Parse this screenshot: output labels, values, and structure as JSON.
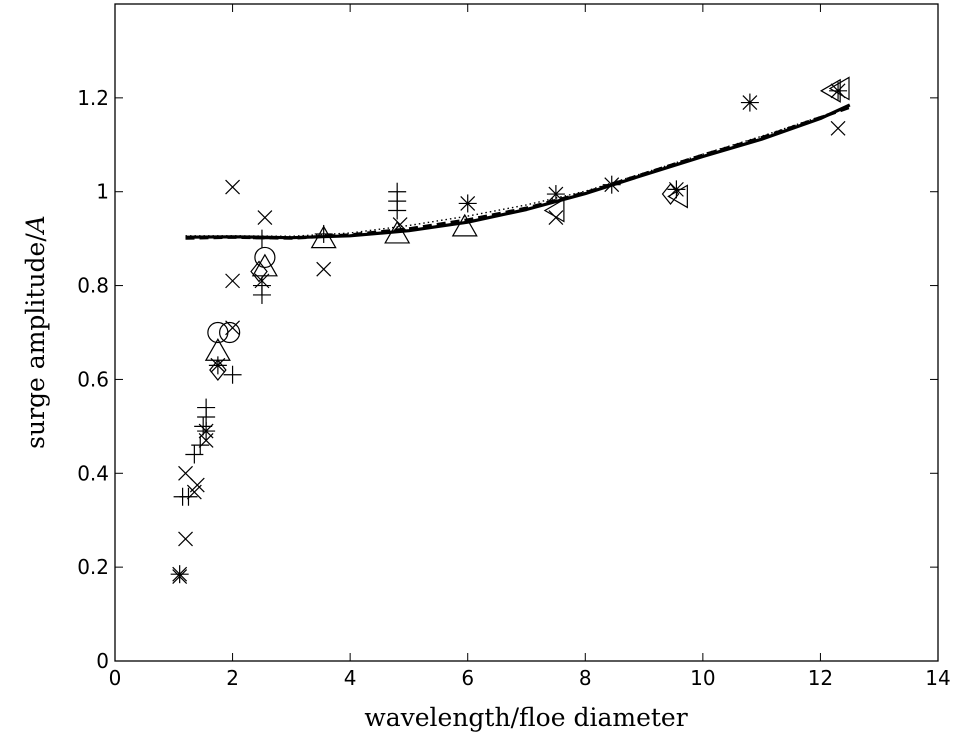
{
  "chart_data": {
    "type": "scatter",
    "title": "",
    "xlabel": "wavelength/floe diameter",
    "ylabel": {
      "prefix": "surge amplitude/",
      "var": "A"
    },
    "xlim": [
      0,
      14
    ],
    "ylim": [
      0,
      1.4
    ],
    "x_ticks": [
      0,
      2,
      4,
      6,
      8,
      10,
      12,
      14
    ],
    "y_ticks": [
      0,
      0.2,
      0.4,
      0.6,
      0.8,
      1,
      1.2
    ],
    "grid": false,
    "legend": null,
    "points": [
      {
        "marker": "x",
        "x": 1.1,
        "y": 0.18
      },
      {
        "marker": "*",
        "x": 1.1,
        "y": 0.185
      },
      {
        "marker": "x",
        "x": 1.2,
        "y": 0.26
      },
      {
        "marker": "+",
        "x": 1.15,
        "y": 0.35
      },
      {
        "marker": "+",
        "x": 1.25,
        "y": 0.35
      },
      {
        "marker": "x",
        "x": 1.2,
        "y": 0.4
      },
      {
        "marker": "x",
        "x": 1.35,
        "y": 0.36
      },
      {
        "marker": "x",
        "x": 1.4,
        "y": 0.375
      },
      {
        "marker": "+",
        "x": 1.35,
        "y": 0.44
      },
      {
        "marker": "+",
        "x": 1.45,
        "y": 0.46
      },
      {
        "marker": "x",
        "x": 1.55,
        "y": 0.47
      },
      {
        "marker": "*",
        "x": 1.55,
        "y": 0.49
      },
      {
        "marker": "+",
        "x": 1.5,
        "y": 0.5
      },
      {
        "marker": "+",
        "x": 1.55,
        "y": 0.52
      },
      {
        "marker": "+",
        "x": 1.55,
        "y": 0.54
      },
      {
        "marker": "diamond",
        "x": 1.75,
        "y": 0.62
      },
      {
        "marker": "*",
        "x": 1.75,
        "y": 0.63
      },
      {
        "marker": "triangle",
        "x": 1.75,
        "y": 0.66
      },
      {
        "marker": "circle",
        "x": 1.75,
        "y": 0.7
      },
      {
        "marker": "+",
        "x": 2.0,
        "y": 0.61
      },
      {
        "marker": "circle",
        "x": 1.95,
        "y": 0.7
      },
      {
        "marker": "x",
        "x": 2.0,
        "y": 0.71
      },
      {
        "marker": "x",
        "x": 2.0,
        "y": 0.81
      },
      {
        "marker": "x",
        "x": 2.0,
        "y": 1.01
      },
      {
        "marker": "+",
        "x": 2.5,
        "y": 0.78
      },
      {
        "marker": "+",
        "x": 2.5,
        "y": 0.8
      },
      {
        "marker": "x",
        "x": 2.5,
        "y": 0.81
      },
      {
        "marker": "diamond",
        "x": 2.45,
        "y": 0.83
      },
      {
        "marker": "triangle",
        "x": 2.55,
        "y": 0.84
      },
      {
        "marker": "circle",
        "x": 2.55,
        "y": 0.86
      },
      {
        "marker": "+",
        "x": 2.5,
        "y": 0.9
      },
      {
        "marker": "x",
        "x": 2.55,
        "y": 0.945
      },
      {
        "marker": "triangle",
        "x": 3.55,
        "y": 0.9
      },
      {
        "marker": "+",
        "x": 3.55,
        "y": 0.91
      },
      {
        "marker": "x",
        "x": 3.55,
        "y": 0.835
      },
      {
        "marker": "triangle",
        "x": 4.8,
        "y": 0.91
      },
      {
        "marker": "x",
        "x": 4.85,
        "y": 0.93
      },
      {
        "marker": "+",
        "x": 4.8,
        "y": 0.96
      },
      {
        "marker": "+",
        "x": 4.8,
        "y": 0.98
      },
      {
        "marker": "+",
        "x": 4.8,
        "y": 1.0
      },
      {
        "marker": "triangle",
        "x": 5.95,
        "y": 0.925
      },
      {
        "marker": "*",
        "x": 6.0,
        "y": 0.975
      },
      {
        "marker": "x",
        "x": 7.5,
        "y": 0.945
      },
      {
        "marker": "triangle-left",
        "x": 7.5,
        "y": 0.96
      },
      {
        "marker": "*",
        "x": 7.5,
        "y": 0.995
      },
      {
        "marker": "*",
        "x": 8.45,
        "y": 1.015
      },
      {
        "marker": "diamond",
        "x": 9.45,
        "y": 0.995
      },
      {
        "marker": "triangle-left",
        "x": 9.6,
        "y": 0.99
      },
      {
        "marker": "*",
        "x": 9.55,
        "y": 1.005
      },
      {
        "marker": "*",
        "x": 10.8,
        "y": 1.19
      },
      {
        "marker": "triangle-left",
        "x": 12.2,
        "y": 1.215
      },
      {
        "marker": "triangle-left",
        "x": 12.35,
        "y": 1.22
      },
      {
        "marker": "*",
        "x": 12.3,
        "y": 1.215
      },
      {
        "marker": "x",
        "x": 12.3,
        "y": 1.135
      }
    ],
    "series": [
      {
        "style": "solid",
        "x": [
          1.2,
          2,
          3,
          4,
          5,
          6,
          7,
          8,
          9,
          10,
          11,
          12,
          12.5
        ],
        "y": [
          0.903,
          0.904,
          0.902,
          0.906,
          0.917,
          0.935,
          0.962,
          0.996,
          1.036,
          1.075,
          1.112,
          1.156,
          1.185
        ]
      },
      {
        "style": "dashed",
        "x": [
          1.2,
          2,
          3,
          4,
          5,
          6,
          7,
          8,
          9,
          10,
          11,
          12,
          12.5
        ],
        "y": [
          0.901,
          0.903,
          0.901,
          0.908,
          0.921,
          0.94,
          0.965,
          0.998,
          1.038,
          1.078,
          1.115,
          1.158,
          1.18
        ]
      },
      {
        "style": "dotted",
        "x": [
          1.2,
          2,
          3,
          4,
          5,
          6,
          7,
          8,
          9,
          10,
          11,
          12,
          12.5
        ],
        "y": [
          0.906,
          0.906,
          0.905,
          0.912,
          0.928,
          0.948,
          0.972,
          1.001,
          1.04,
          1.08,
          1.118,
          1.16,
          1.182
        ]
      }
    ]
  }
}
